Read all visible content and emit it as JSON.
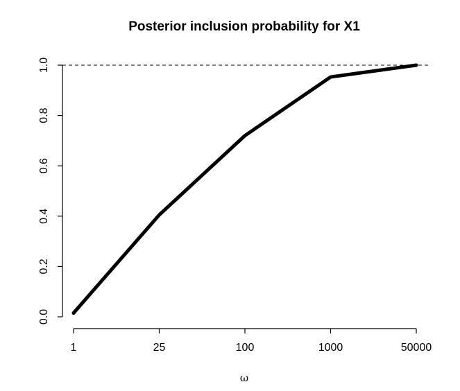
{
  "chart_data": {
    "type": "line",
    "title": "Posterior inclusion probability for X1",
    "xlabel": "ω",
    "ylabel": "",
    "categories": [
      "1",
      "25",
      "100",
      "1000",
      "50000"
    ],
    "values": [
      0.015,
      0.405,
      0.72,
      0.953,
      1.0
    ],
    "ylim": [
      0,
      1
    ],
    "yticks": [
      "0.0",
      "0.2",
      "0.4",
      "0.6",
      "0.8",
      "1.0"
    ],
    "yticks_values": [
      0,
      0.2,
      0.4,
      0.6,
      0.8,
      1.0
    ],
    "reference_line": {
      "y": 1.0,
      "style": "dashed"
    },
    "grid": false,
    "legend": "none"
  }
}
